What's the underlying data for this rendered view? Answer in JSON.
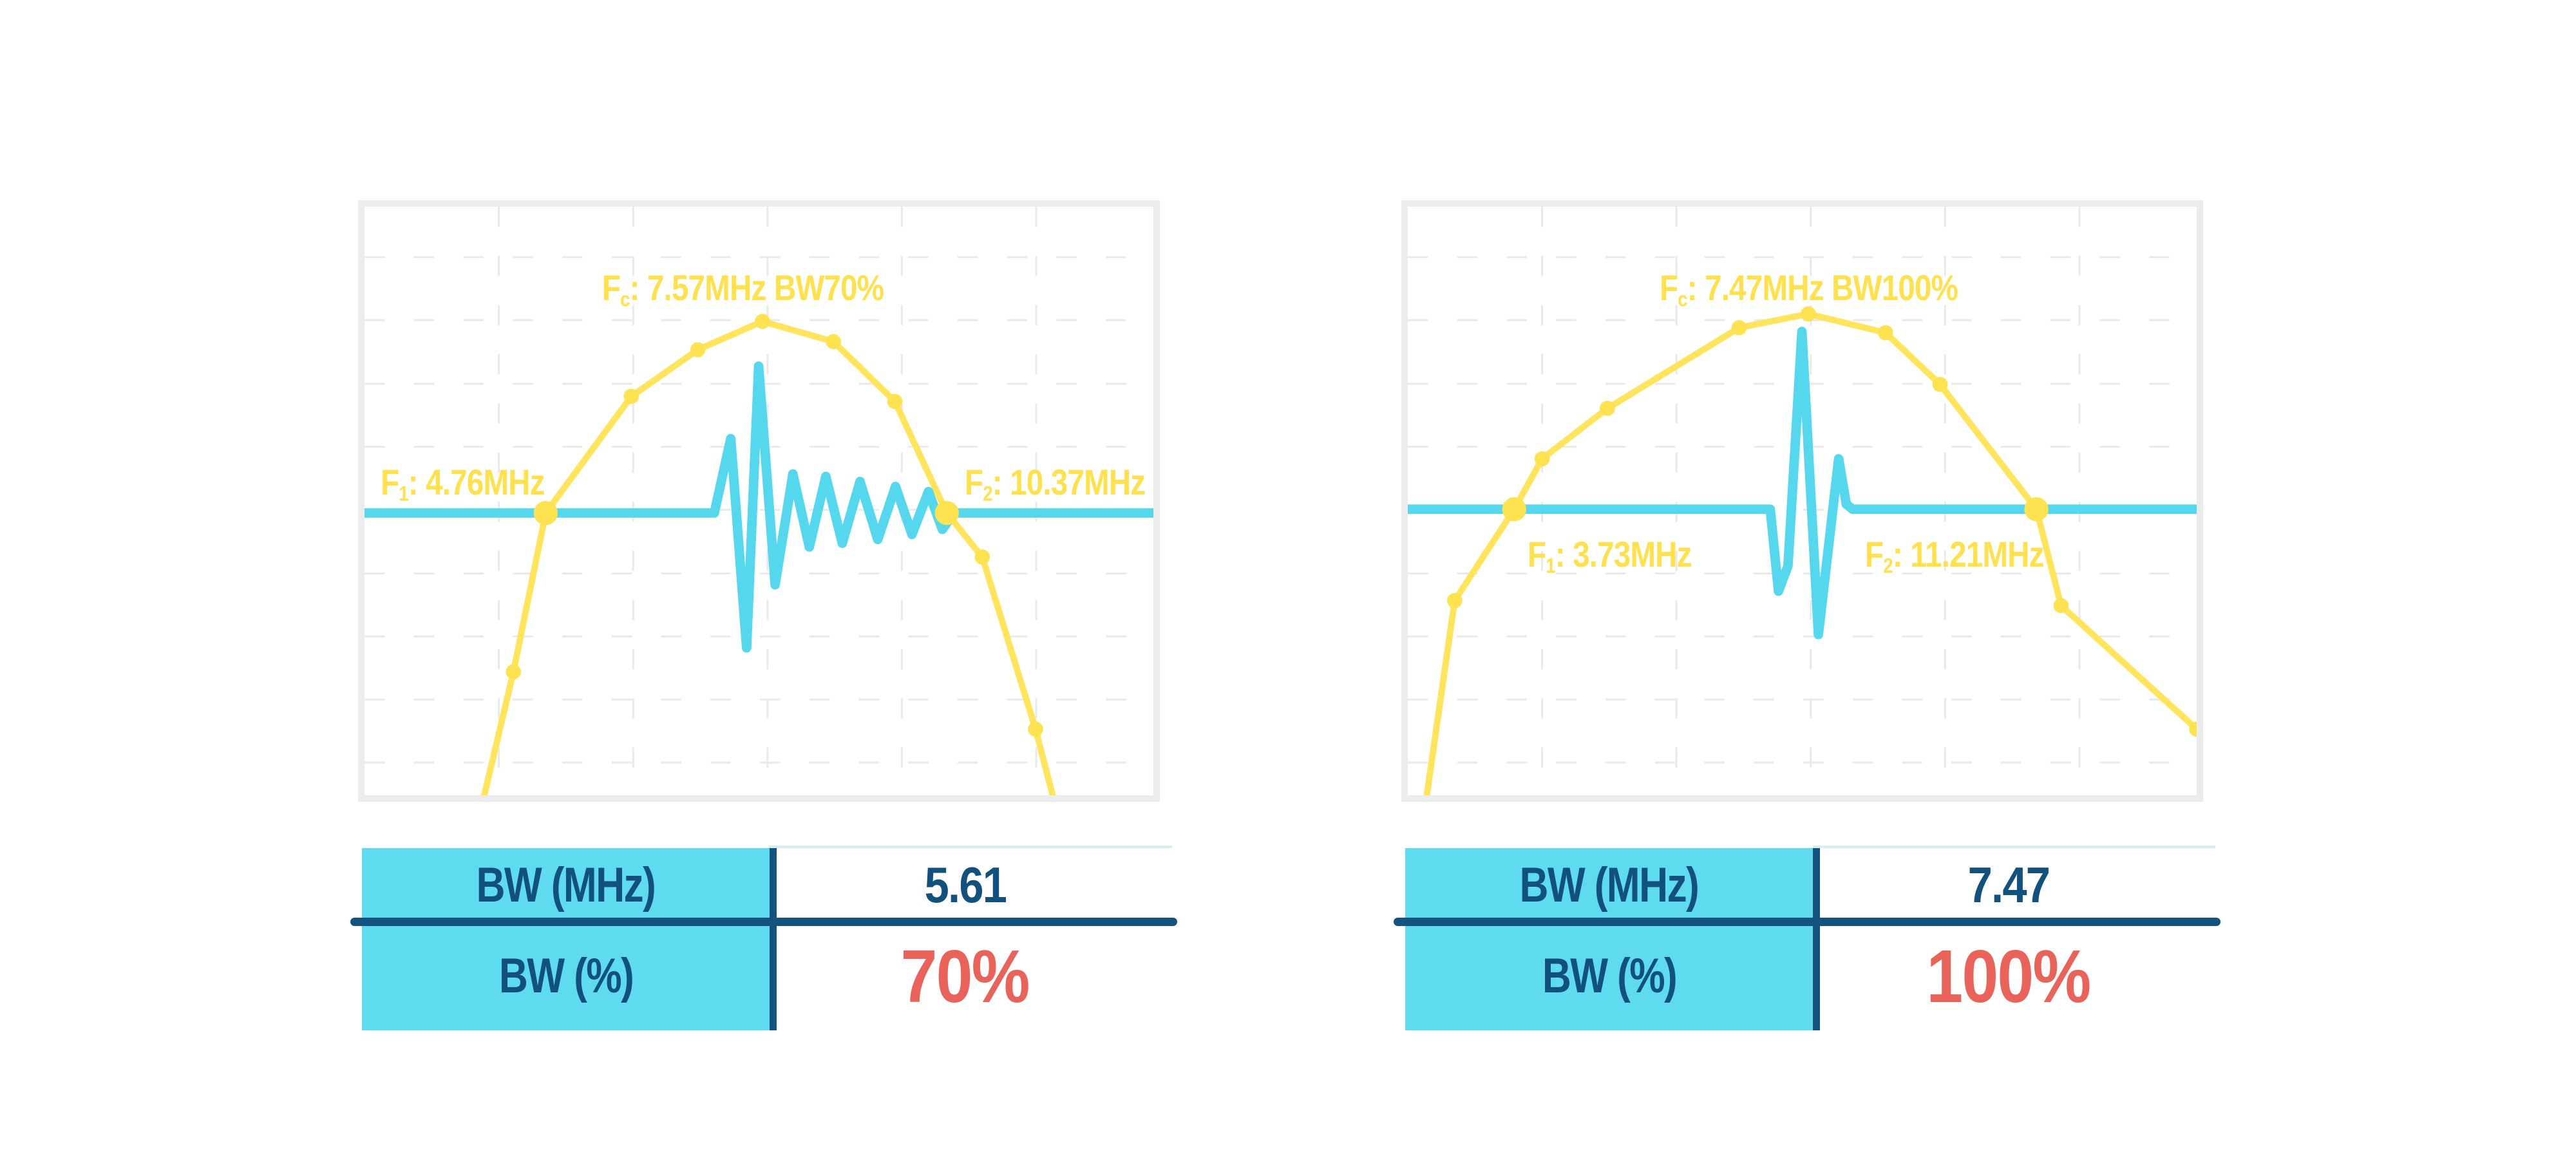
{
  "page": {
    "background": "#ffffff"
  },
  "colors": {
    "curve_yellow": "#FFE45C",
    "marker_yellow": "#FFE24F",
    "annotation_yellow": "#FFE14D",
    "pulse_cyan": "#55D8EE",
    "table_header_cyan": "#5EDBEE",
    "navy_text": "#12507E",
    "navy_divider": "#14537F",
    "red_value": "#E9635A",
    "grid_gray": "#E9E9E9",
    "border_gray": "#ECECEC"
  },
  "charts": [
    {
      "id": "pulse-bw70",
      "annotations": {
        "fc": {
          "base": "F",
          "sub": "c",
          "rest": ": 7.57MHz BW70%"
        },
        "f1": {
          "base": "F",
          "sub": "1",
          "rest": ": 4.76MHz"
        },
        "f2": {
          "base": "F",
          "sub": "2",
          "rest": ": 10.37MHz"
        }
      },
      "spectrum": {
        "points": [
          [
            189,
            934
          ],
          [
            235,
            738
          ],
          [
            286,
            486
          ],
          [
            421,
            301
          ],
          [
            526,
            227
          ],
          [
            628,
            182
          ],
          [
            740,
            214
          ],
          [
            837,
            309
          ],
          [
            919,
            486
          ],
          [
            975,
            556
          ],
          [
            1059,
            829
          ],
          [
            1086,
            934
          ]
        ],
        "markers": [
          [
            235,
            738
          ],
          [
            421,
            301
          ],
          [
            526,
            227
          ],
          [
            628,
            182
          ],
          [
            740,
            214
          ],
          [
            837,
            309
          ],
          [
            975,
            556
          ],
          [
            1059,
            829
          ]
        ],
        "big_markers": [
          [
            286,
            486
          ],
          [
            919,
            486
          ]
        ]
      },
      "pulse": {
        "baseline": 486,
        "points": [
          [
            0,
            486
          ],
          [
            552,
            486
          ],
          [
            578,
            368
          ],
          [
            603,
            700
          ],
          [
            622,
            253
          ],
          [
            648,
            600
          ],
          [
            676,
            424
          ],
          [
            702,
            540
          ],
          [
            728,
            428
          ],
          [
            754,
            534
          ],
          [
            782,
            436
          ],
          [
            810,
            528
          ],
          [
            838,
            444
          ],
          [
            864,
            520
          ],
          [
            890,
            452
          ],
          [
            912,
            512
          ],
          [
            930,
            486
          ],
          [
            1245,
            486
          ]
        ]
      },
      "table": {
        "rows": [
          {
            "label": "BW (MHz)",
            "value": "5.61"
          },
          {
            "label": "BW (%)",
            "value": "70%"
          }
        ]
      }
    },
    {
      "id": "pulse-bw100",
      "annotations": {
        "fc": {
          "base": "F",
          "sub": "c",
          "rest": ": 7.47MHz BW100%"
        },
        "f1": {
          "base": "F",
          "sub": "1",
          "rest": ": 3.73MHz"
        },
        "f2": {
          "base": "F",
          "sub": "2",
          "rest": ": 11.21MHz"
        }
      },
      "spectrum": {
        "points": [
          [
            30,
            934
          ],
          [
            74,
            625
          ],
          [
            168,
            480
          ],
          [
            212,
            400
          ],
          [
            315,
            320
          ],
          [
            523,
            192
          ],
          [
            632,
            170
          ],
          [
            754,
            200
          ],
          [
            840,
            282
          ],
          [
            992,
            480
          ],
          [
            1031,
            633
          ],
          [
            1245,
            829
          ]
        ],
        "markers": [
          [
            74,
            625
          ],
          [
            212,
            400
          ],
          [
            315,
            320
          ],
          [
            523,
            192
          ],
          [
            632,
            170
          ],
          [
            754,
            200
          ],
          [
            840,
            282
          ],
          [
            1031,
            633
          ],
          [
            1245,
            829
          ]
        ],
        "big_markers": [
          [
            168,
            480
          ],
          [
            992,
            480
          ]
        ]
      },
      "pulse": {
        "baseline": 480,
        "points": [
          [
            0,
            480
          ],
          [
            558,
            480
          ],
          [
            572,
            480
          ],
          [
            585,
            610
          ],
          [
            600,
            570
          ],
          [
            622,
            198
          ],
          [
            648,
            679
          ],
          [
            680,
            400
          ],
          [
            692,
            472
          ],
          [
            702,
            480
          ],
          [
            1245,
            480
          ]
        ]
      },
      "table": {
        "rows": [
          {
            "label": "BW (MHz)",
            "value": "7.47"
          },
          {
            "label": "BW (%)",
            "value": "100%"
          }
        ]
      }
    }
  ],
  "chart_data": [
    {
      "type": "line",
      "title": "Pulse spectrum, 70% fractional bandwidth",
      "x_unit": "MHz",
      "annotations": {
        "F1_MHz": 4.76,
        "Fc_MHz": 7.57,
        "F2_MHz": 10.37,
        "BW_label": "BW70%"
      },
      "table": {
        "BW_MHz": 5.61,
        "BW_percent": "70%"
      },
      "series": [
        {
          "name": "frequency-spectrum",
          "color": "#FFE45C",
          "style": "line-with-dot-markers"
        },
        {
          "name": "time-domain-pulse",
          "color": "#55D8EE",
          "style": "oscillating pulse with long ring-down ripples"
        }
      ],
      "grid": "light dashed",
      "legend": false
    },
    {
      "type": "line",
      "title": "Pulse spectrum, 100% fractional bandwidth",
      "x_unit": "MHz",
      "annotations": {
        "F1_MHz": 3.73,
        "Fc_MHz": 7.47,
        "F2_MHz": 11.21,
        "BW_label": "BW100%"
      },
      "table": {
        "BW_MHz": 7.47,
        "BW_percent": "100%"
      },
      "series": [
        {
          "name": "frequency-spectrum",
          "color": "#FFE45C",
          "style": "line-with-dot-markers"
        },
        {
          "name": "time-domain-pulse",
          "color": "#55D8EE",
          "style": "short single-cycle broadband pulse"
        }
      ],
      "grid": "light dashed",
      "legend": false
    }
  ]
}
